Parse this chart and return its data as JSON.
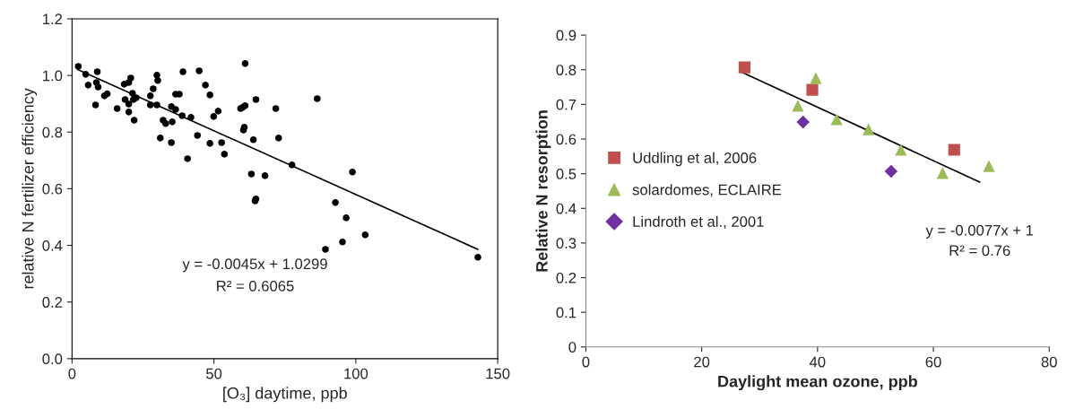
{
  "chart_data": [
    {
      "type": "scatter",
      "xlabel": "[O₃] daytime, ppb",
      "ylabel": "relative N fertilizer efficiency",
      "xlim": [
        0,
        150
      ],
      "xticks": [
        0,
        50,
        100,
        150
      ],
      "ylim": [
        0,
        1.2
      ],
      "yticks": [
        {
          "value": 0,
          "label": "0.0"
        },
        {
          "value": 0.2,
          "label": "0.2"
        },
        {
          "value": 0.4,
          "label": "0.4"
        },
        {
          "value": 0.6,
          "label": "0.6"
        },
        {
          "value": 0.8,
          "label": "0.8"
        },
        {
          "value": 1.0,
          "label": "1.0"
        },
        {
          "value": 1.2,
          "label": "1.2"
        }
      ],
      "grid": false,
      "legend": false,
      "series": [
        {
          "color": "#000000",
          "marker": "circle",
          "x": [
            2.2,
            4.8,
            8.9,
            5.7,
            8.6,
            9.2,
            8.3,
            11.4,
            12.4,
            15.9,
            18.4,
            20.0,
            20.7,
            21.3,
            18.7,
            20.0,
            20.0,
            21.9,
            21.6,
            22.6,
            27.6,
            27.6,
            28.6,
            29.9,
            30.2,
            29.9,
            31.1,
            32.1,
            33.0,
            35.0,
            35.3,
            35.0,
            36.5,
            37.8,
            36.5,
            38.8,
            39.1,
            40.7,
            41.9,
            44.2,
            44.8,
            47.0,
            48.6,
            49.9,
            51.5,
            48.6,
            52.7,
            53.7,
            61.0,
            60.1,
            60.7,
            60.4,
            59.4,
            61.0,
            64.8,
            71.8,
            86.4,
            63.9,
            72.8,
            63.2,
            68.0,
            77.5,
            64.8,
            64.5,
            98.8,
            92.8,
            96.6,
            103.3,
            95.3,
            89.3,
            143.0
          ],
          "values": [
            1.032,
            1.004,
            1.013,
            0.966,
            0.975,
            0.959,
            0.896,
            0.928,
            0.935,
            0.883,
            0.969,
            0.975,
            0.991,
            0.937,
            0.915,
            0.899,
            0.871,
            0.842,
            0.915,
            0.921,
            0.928,
            0.896,
            0.953,
            1.001,
            0.982,
            0.896,
            0.779,
            0.842,
            0.83,
            0.89,
            0.836,
            0.763,
            0.934,
            0.934,
            0.88,
            0.858,
            1.013,
            0.706,
            0.852,
            0.788,
            1.016,
            0.966,
            0.931,
            0.855,
            0.874,
            0.76,
            0.763,
            0.722,
            1.042,
            0.887,
            0.817,
            0.807,
            0.883,
            0.893,
            0.915,
            0.883,
            0.918,
            0.773,
            0.779,
            0.652,
            0.646,
            0.684,
            0.564,
            0.557,
            0.659,
            0.551,
            0.497,
            0.437,
            0.412,
            0.386,
            0.358
          ]
        },
        {
          "type": "line",
          "color": "#000000",
          "x": [
            2,
            143
          ],
          "values": [
            1.021,
            0.386
          ]
        }
      ],
      "annotations": [
        "y = -0.0045x + 1.0299",
        "R² = 0.6065"
      ]
    },
    {
      "type": "scatter",
      "xlabel": "Daylight mean ozone, ppb",
      "ylabel": "Relative N resorption",
      "xlim": [
        0,
        80
      ],
      "xticks": [
        0,
        20,
        40,
        60,
        80
      ],
      "ylim": [
        0,
        0.9
      ],
      "yticks": [
        0,
        0.1,
        0.2,
        0.3,
        0.4,
        0.5,
        0.6,
        0.7,
        0.8,
        0.9
      ],
      "grid": false,
      "legend": "left",
      "series": [
        {
          "name": "Uddling et al, 2006",
          "color": "#c0504d",
          "marker": "square",
          "x": [
            27.4,
            39.1,
            63.6
          ],
          "values": [
            0.807,
            0.742,
            0.569
          ]
        },
        {
          "name": "solardomes, ECLAIRE",
          "color": "#9bbb59",
          "marker": "triangle",
          "x": [
            39.7,
            36.6,
            43.3,
            48.8,
            54.4,
            61.6,
            69.6
          ],
          "values": [
            0.776,
            0.696,
            0.657,
            0.628,
            0.569,
            0.502,
            0.522
          ]
        },
        {
          "name": "Lindroth et al., 2001",
          "color": "#7030a0",
          "marker": "diamond",
          "x": [
            37.5,
            52.7
          ],
          "values": [
            0.649,
            0.507
          ]
        },
        {
          "type": "line",
          "color": "#000000",
          "x": [
            27,
            68
          ],
          "values": [
            0.792,
            0.476
          ]
        }
      ],
      "annotations": [
        "y = -0.0077x + 1",
        "R² = 0.76"
      ]
    }
  ]
}
